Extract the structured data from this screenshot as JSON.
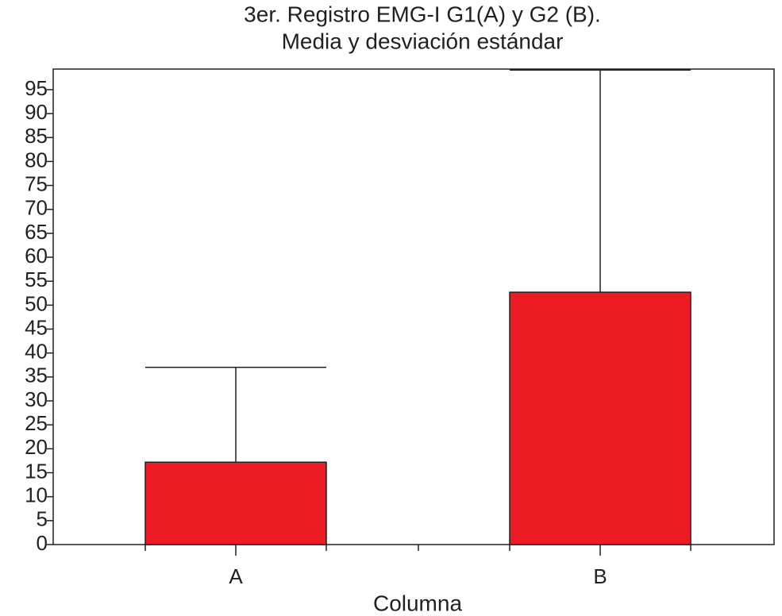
{
  "chart_data": {
    "type": "bar",
    "title": [
      "3er. Registro EMG-I G1(A) y G2 (B).",
      "Media y desviación estándar"
    ],
    "xlabel": "Columna",
    "categories": [
      "A",
      "B"
    ],
    "values": [
      17.2,
      52.7
    ],
    "errors": [
      19.8,
      46.4
    ],
    "color": "#ed1c24",
    "ylim": [
      0,
      99.3
    ],
    "yticks": [
      0,
      5,
      10,
      15,
      20,
      25,
      30,
      35,
      40,
      45,
      50,
      55,
      60,
      65,
      70,
      75,
      80,
      85,
      90,
      95
    ]
  }
}
